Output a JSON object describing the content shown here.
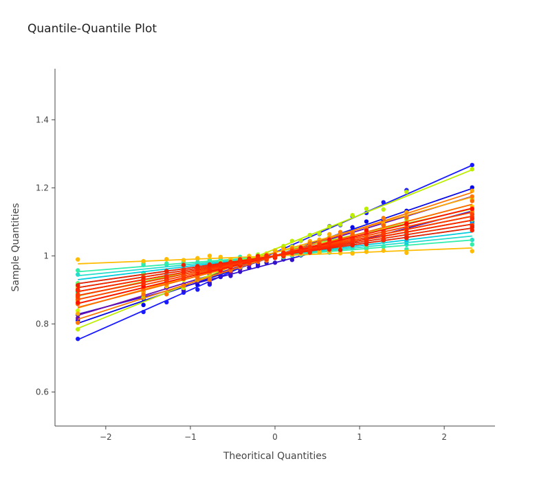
{
  "chart_data": {
    "type": "scatter",
    "title": "Quantile-Quantile Plot",
    "xlabel": "Theoritical Quantities",
    "ylabel": "Sample Quantities",
    "xlim": [
      -2.6,
      2.6
    ],
    "ylim": [
      0.5,
      1.55
    ],
    "x_ticks": [
      -2,
      -1,
      0,
      1,
      2
    ],
    "x_tick_labels": [
      "−2",
      "−1",
      "0",
      "1",
      "2"
    ],
    "y_ticks": [
      0.6,
      0.8,
      1.0,
      1.2,
      1.4
    ],
    "y_tick_labels": [
      "0.6",
      "0.8",
      "1",
      "1.2",
      "1.4"
    ],
    "grid": false,
    "legend": "none",
    "quantile_range": [
      -2.33,
      2.33
    ],
    "points_per_series": 25,
    "series": [
      {
        "color": "#0a0ae6",
        "intercept": 1.0,
        "slope": 0.085
      },
      {
        "color": "#1a1aff",
        "intercept": 1.01,
        "slope": 0.11
      },
      {
        "color": "#3311cc",
        "intercept": 0.98,
        "slope": 0.065
      },
      {
        "color": "#6a0dad",
        "intercept": 1.0,
        "slope": 0.075
      },
      {
        "color": "#5500aa",
        "intercept": 1.0,
        "slope": 0.06
      },
      {
        "color": "#0044ff",
        "intercept": 1.0,
        "slope": 0.05
      },
      {
        "color": "#0077ff",
        "intercept": 1.0,
        "slope": 0.045
      },
      {
        "color": "#0099ff",
        "intercept": 1.0,
        "slope": 0.04
      },
      {
        "color": "#00bbee",
        "intercept": 1.0,
        "slope": 0.035
      },
      {
        "color": "#00ccdd",
        "intercept": 1.0,
        "slope": 0.03
      },
      {
        "color": "#22ddcc",
        "intercept": 1.0,
        "slope": 0.025
      },
      {
        "color": "#33eeaa",
        "intercept": 1.0,
        "slope": 0.02
      },
      {
        "color": "#44ff88",
        "intercept": 1.0,
        "slope": 0.045
      },
      {
        "color": "#66ff66",
        "intercept": 1.0,
        "slope": 0.04
      },
      {
        "color": "#99ff33",
        "intercept": 1.01,
        "slope": 0.055
      },
      {
        "color": "#bbee00",
        "intercept": 1.02,
        "slope": 0.1
      },
      {
        "color": "#ccff00",
        "intercept": 1.0,
        "slope": 0.065
      },
      {
        "color": "#ddee00",
        "intercept": 1.0,
        "slope": 0.05
      },
      {
        "color": "#ffdd00",
        "intercept": 1.0,
        "slope": 0.06
      },
      {
        "color": "#ffcc00",
        "intercept": 1.0,
        "slope": 0.045
      },
      {
        "color": "#ffbb00",
        "intercept": 1.0,
        "slope": 0.01
      },
      {
        "color": "#ffaa00",
        "intercept": 1.01,
        "slope": 0.07
      },
      {
        "color": "#ff9900",
        "intercept": 1.0,
        "slope": 0.055
      },
      {
        "color": "#ff8800",
        "intercept": 1.0,
        "slope": 0.06
      },
      {
        "color": "#ff7700",
        "intercept": 1.0,
        "slope": 0.08
      },
      {
        "color": "#ff6600",
        "intercept": 1.0,
        "slope": 0.065
      },
      {
        "color": "#ff5500",
        "intercept": 1.0,
        "slope": 0.05
      },
      {
        "color": "#ff4400",
        "intercept": 1.0,
        "slope": 0.055
      },
      {
        "color": "#ff3300",
        "intercept": 1.0,
        "slope": 0.045
      },
      {
        "color": "#ff2200",
        "intercept": 1.0,
        "slope": 0.04
      },
      {
        "color": "#ff1100",
        "intercept": 1.0,
        "slope": 0.06
      },
      {
        "color": "#ee2200",
        "intercept": 1.0,
        "slope": 0.035
      },
      {
        "color": "#ff3a00",
        "intercept": 1.0,
        "slope": 0.05
      },
      {
        "color": "#ff2a00",
        "intercept": 1.0,
        "slope": 0.045
      }
    ]
  }
}
